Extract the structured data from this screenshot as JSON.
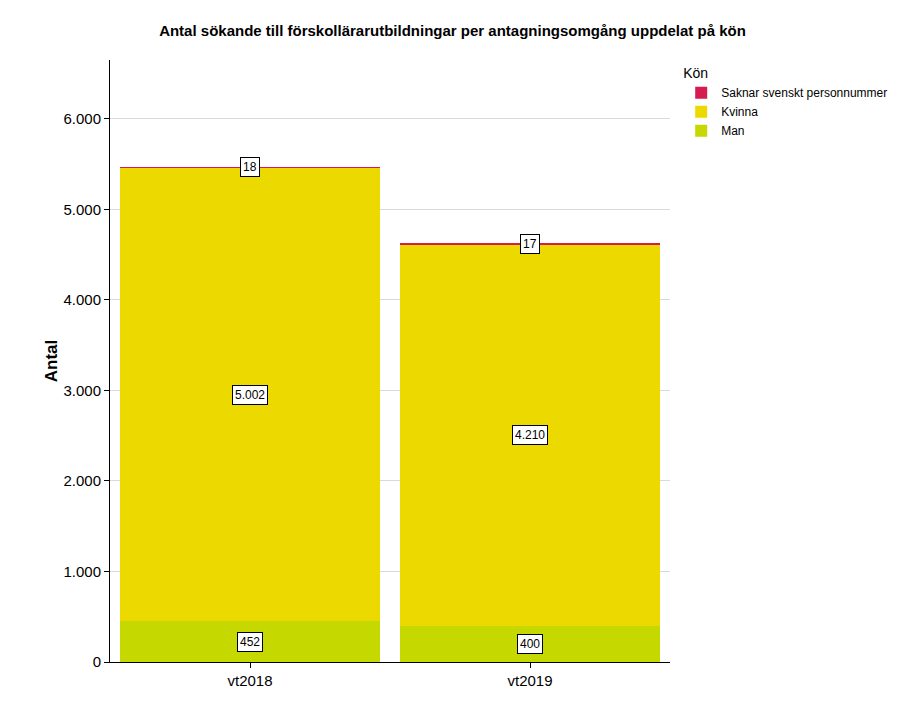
{
  "chart_data": {
    "type": "bar",
    "title": "Antal sökande till förskollärarutbildningar per antagningsomgång uppdelat på kön",
    "y_label": "Antal",
    "legend_title": "Kön",
    "categories": [
      "vt2018",
      "vt2019"
    ],
    "stacked": true,
    "data_labels": true,
    "grid": true,
    "legend": "top right",
    "series": [
      {
        "name": "Man",
        "color": "#c5d800",
        "values": [
          452,
          400
        ],
        "value_labels": [
          "452",
          "400"
        ]
      },
      {
        "name": "Kvinna",
        "color": "#ecd900",
        "values": [
          5002,
          4210
        ],
        "value_labels": [
          "5.002",
          "4.210"
        ]
      },
      {
        "name": "Saknar svenskt personnummer",
        "color": "#d81b4f",
        "values": [
          18,
          17
        ],
        "value_labels": [
          "18",
          "17"
        ]
      }
    ],
    "ylim": [
      0,
      6650
    ],
    "yticks": [
      0,
      {
        "value": 1000,
        "label": "1.000"
      },
      {
        "value": 2000,
        "label": "2.000"
      },
      {
        "value": 3000,
        "label": "3.000"
      },
      {
        "value": 4000,
        "label": "4.000"
      },
      {
        "value": 5000,
        "label": "5.000"
      },
      {
        "value": 6000,
        "label": "6.000"
      }
    ]
  }
}
